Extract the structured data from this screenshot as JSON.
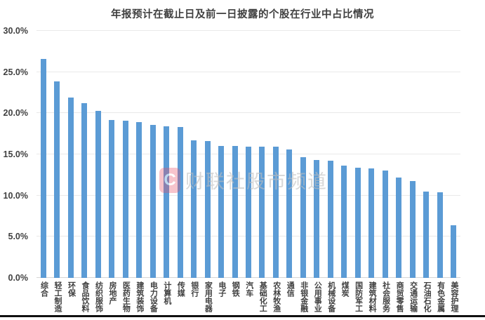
{
  "title": "年报预计在截止日及前一日披露的个股在行业中占比情况",
  "watermark": {
    "logo_letter": "C",
    "text": "财联社股市频道"
  },
  "colors": {
    "bar": "#5B9BD5",
    "grid": "#E9E9E9",
    "axis_text": "#404040",
    "watermark_logo": "#E74D65",
    "watermark_text": "#BFBFBF"
  },
  "chart_data": {
    "type": "bar",
    "title": "年报预计在截止日及前一日披露的个股在行业中占比情况",
    "xlabel": "",
    "ylabel": "",
    "ylim": [
      0,
      30
    ],
    "grid": true,
    "legend": "none",
    "ytick_labels": [
      "0.0%",
      "5.0%",
      "10.0%",
      "15.0%",
      "20.0%",
      "25.0%",
      "30.0%"
    ],
    "categories": [
      "综合",
      "轻工制造",
      "环保",
      "食品饮料",
      "纺织服饰",
      "房地产",
      "医药生物",
      "建筑装饰",
      "电力设备",
      "计算机",
      "传媒",
      "银行",
      "家用电器",
      "电子",
      "钢铁",
      "汽车",
      "基础化工",
      "农林牧渔",
      "通信",
      "非银金融",
      "公用事业",
      "机械设备",
      "煤炭",
      "国防军工",
      "建筑材料",
      "社会服务",
      "商贸零售",
      "交通运输",
      "石油石化",
      "有色金属",
      "美容护理"
    ],
    "values": [
      26.6,
      23.9,
      21.9,
      21.2,
      20.3,
      19.2,
      19.1,
      18.9,
      18.6,
      18.4,
      18.3,
      16.7,
      16.6,
      16.0,
      16.0,
      15.9,
      15.9,
      15.9,
      15.6,
      14.7,
      14.3,
      14.2,
      13.6,
      13.4,
      13.3,
      13.0,
      12.2,
      11.8,
      10.5,
      10.4,
      6.4
    ],
    "value_unit": "%"
  }
}
